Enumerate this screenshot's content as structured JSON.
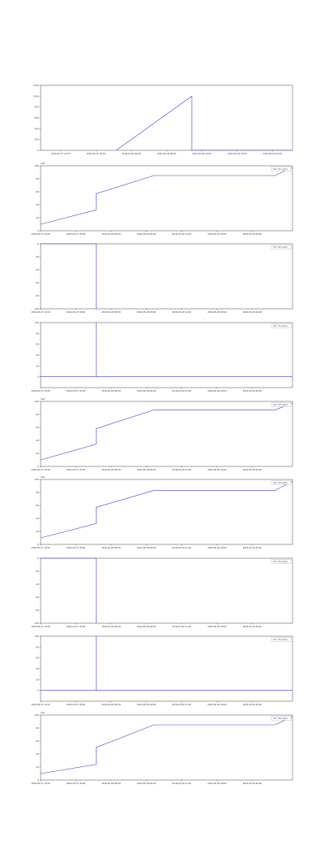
{
  "chart_data": [
    {
      "type": "line",
      "xlim": [
        0,
        100
      ],
      "ylim": [
        0,
        1200
      ],
      "yticks": [
        0,
        200,
        400,
        600,
        800,
        1000,
        1200
      ],
      "xticks": [
        {
          "value": 8,
          "label": "2016-05-27 12:00"
        },
        {
          "value": 22,
          "label": "2016-05-27 18:00"
        },
        {
          "value": 36,
          "label": "2016-05-28 00:00"
        },
        {
          "value": 50,
          "label": "2016-05-28 06:00"
        },
        {
          "value": 64,
          "label": "2016-05-28 12:00"
        },
        {
          "value": 78,
          "label": "2016-05-28 18:00"
        },
        {
          "value": 92,
          "label": "2016-05-29 00:00"
        }
      ],
      "x": [
        30,
        60,
        60,
        100
      ],
      "series": [
        {
          "color": "#3b3bd9",
          "values": [
            0,
            1000,
            0,
            0
          ]
        }
      ]
    },
    {
      "type": "line",
      "offset_text": "1e6",
      "xlim": [
        0,
        100
      ],
      "ylim": [
        0,
        100
      ],
      "yticks": [
        0,
        20,
        40,
        60,
        80,
        100
      ],
      "xticks": [
        {
          "value": 0,
          "label": "2016-05-27 12:00"
        },
        {
          "value": 14,
          "label": "2016-05-27 18:00"
        },
        {
          "value": 28,
          "label": "2016-05-28 00:00"
        },
        {
          "value": 42,
          "label": "2016-05-28 06:00"
        },
        {
          "value": 56,
          "label": "2016-05-28 12:00"
        },
        {
          "value": 70,
          "label": "2016-05-28 18:00"
        },
        {
          "value": 84,
          "label": "2016-05-29 00:00"
        }
      ],
      "x": [
        0,
        22,
        22,
        45,
        93,
        100
      ],
      "series": [
        {
          "name": "S1 (rpm)",
          "color": "#3b3bd9",
          "values": [
            10,
            32,
            57,
            85,
            85,
            97
          ]
        }
      ]
    },
    {
      "type": "line",
      "xlim": [
        0,
        100
      ],
      "ylim": [
        -100,
        0
      ],
      "yticks": [
        -100,
        -80,
        -60,
        -40,
        -20,
        0
      ],
      "xticks": [
        {
          "value": 0,
          "label": "2016-05-27 12:00"
        },
        {
          "value": 14,
          "label": "2016-05-27 18:00"
        },
        {
          "value": 28,
          "label": "2016-05-28 00:00"
        },
        {
          "value": 42,
          "label": "2016-05-28 06:00"
        },
        {
          "value": 56,
          "label": "2016-05-28 12:00"
        },
        {
          "value": 70,
          "label": "2016-05-28 18:00"
        },
        {
          "value": 84,
          "label": "2016-05-29 00:00"
        }
      ],
      "x": [
        0,
        22,
        22
      ],
      "series": [
        {
          "name": "S2 (rpm)",
          "color": "#3b3bd9",
          "values": [
            0,
            0,
            -100
          ]
        }
      ]
    },
    {
      "type": "line",
      "xlim": [
        0,
        100
      ],
      "ylim": [
        -20,
        100
      ],
      "yticks": [
        0,
        20,
        40,
        60,
        80,
        100
      ],
      "xticks": [
        {
          "value": 0,
          "label": "2016-05-27 12:00"
        },
        {
          "value": 14,
          "label": "2016-05-27 18:00"
        },
        {
          "value": 28,
          "label": "2016-05-28 00:00"
        },
        {
          "value": 42,
          "label": "2016-05-28 06:00"
        },
        {
          "value": 56,
          "label": "2016-05-28 12:00"
        },
        {
          "value": 70,
          "label": "2016-05-28 18:00"
        },
        {
          "value": 84,
          "label": "2016-05-29 00:00"
        }
      ],
      "x": [
        0,
        22,
        22,
        22,
        100
      ],
      "series": [
        {
          "name": "T1 (rpm)",
          "color": "#3b3bd9",
          "values": [
            0,
            0,
            100,
            0,
            0
          ]
        }
      ]
    },
    {
      "type": "line",
      "offset_text": "1e6",
      "xlim": [
        0,
        100
      ],
      "ylim": [
        0,
        100
      ],
      "yticks": [
        0,
        20,
        40,
        60,
        80,
        100
      ],
      "xticks": [
        {
          "value": 0,
          "label": "2016-05-27 12:00"
        },
        {
          "value": 14,
          "label": "2016-05-27 18:00"
        },
        {
          "value": 28,
          "label": "2016-05-28 00:00"
        },
        {
          "value": 42,
          "label": "2016-05-28 06:00"
        },
        {
          "value": 56,
          "label": "2016-05-28 12:00"
        },
        {
          "value": 70,
          "label": "2016-05-28 18:00"
        },
        {
          "value": 84,
          "label": "2016-05-29 00:00"
        }
      ],
      "x": [
        0,
        22,
        22,
        45,
        93,
        100
      ],
      "series": [
        {
          "name": "S3 (rpm)",
          "color": "#3b3bd9",
          "values": [
            10,
            34,
            58,
            87,
            87,
            97
          ]
        }
      ]
    },
    {
      "type": "line",
      "offset_text": "1e6",
      "xlim": [
        0,
        100
      ],
      "ylim": [
        0,
        100
      ],
      "yticks": [
        0,
        20,
        40,
        60,
        80,
        100
      ],
      "xticks": [
        {
          "value": 0,
          "label": "2016-05-27 12:00"
        },
        {
          "value": 14,
          "label": "2016-05-27 18:00"
        },
        {
          "value": 28,
          "label": "2016-05-28 00:00"
        },
        {
          "value": 42,
          "label": "2016-05-28 06:00"
        },
        {
          "value": 56,
          "label": "2016-05-28 12:00"
        },
        {
          "value": 70,
          "label": "2016-05-28 18:00"
        },
        {
          "value": 84,
          "label": "2016-05-29 00:00"
        }
      ],
      "x": [
        0,
        22,
        22,
        45,
        93,
        100
      ],
      "series": [
        {
          "name": "S4 (rpm)",
          "color": "#3b3bd9",
          "values": [
            10,
            32,
            57,
            83,
            83,
            97
          ]
        }
      ]
    },
    {
      "type": "line",
      "xlim": [
        0,
        100
      ],
      "ylim": [
        -100,
        0
      ],
      "yticks": [
        -100,
        -80,
        -60,
        -40,
        -20,
        0
      ],
      "xticks": [
        {
          "value": 0,
          "label": "2016-05-27 12:00"
        },
        {
          "value": 14,
          "label": "2016-05-27 18:00"
        },
        {
          "value": 28,
          "label": "2016-05-28 00:00"
        },
        {
          "value": 42,
          "label": "2016-05-28 06:00"
        },
        {
          "value": 56,
          "label": "2016-05-28 12:00"
        },
        {
          "value": 70,
          "label": "2016-05-28 18:00"
        },
        {
          "value": 84,
          "label": "2016-05-29 00:00"
        }
      ],
      "x": [
        0,
        22,
        22
      ],
      "series": [
        {
          "name": "S5 (rpm)",
          "color": "#3b3bd9",
          "values": [
            0,
            0,
            -100
          ]
        }
      ]
    },
    {
      "type": "line",
      "xlim": [
        0,
        100
      ],
      "ylim": [
        -20,
        100
      ],
      "yticks": [
        0,
        20,
        40,
        60,
        80,
        100
      ],
      "xticks": [
        {
          "value": 0,
          "label": "2016-05-27 12:00"
        },
        {
          "value": 14,
          "label": "2016-05-27 18:00"
        },
        {
          "value": 28,
          "label": "2016-05-28 00:00"
        },
        {
          "value": 42,
          "label": "2016-05-28 06:00"
        },
        {
          "value": 56,
          "label": "2016-05-28 12:00"
        },
        {
          "value": 70,
          "label": "2016-05-28 18:00"
        },
        {
          "value": 84,
          "label": "2016-05-29 00:00"
        }
      ],
      "x": [
        0,
        22,
        22,
        22,
        100
      ],
      "series": [
        {
          "name": "T2 (rpm)",
          "color": "#3b3bd9",
          "values": [
            0,
            0,
            100,
            0,
            0
          ]
        }
      ]
    },
    {
      "type": "line",
      "offset_text": "1e6",
      "xlim": [
        0,
        100
      ],
      "ylim": [
        0,
        100
      ],
      "yticks": [
        0,
        20,
        40,
        60,
        80,
        100
      ],
      "xticks": [
        {
          "value": 0,
          "label": "2016-05-27 12:00"
        },
        {
          "value": 14,
          "label": "2016-05-27 18:00"
        },
        {
          "value": 28,
          "label": "2016-05-28 00:00"
        },
        {
          "value": 42,
          "label": "2016-05-28 06:00"
        },
        {
          "value": 56,
          "label": "2016-05-28 12:00"
        },
        {
          "value": 70,
          "label": "2016-05-28 18:00"
        },
        {
          "value": 84,
          "label": "2016-05-29 00:00"
        }
      ],
      "x": [
        0,
        22,
        22,
        45,
        93,
        100
      ],
      "series": [
        {
          "name": "S6 (rpm)",
          "color": "#3b3bd9",
          "values": [
            10,
            24,
            50,
            85,
            85,
            97
          ]
        }
      ]
    }
  ]
}
